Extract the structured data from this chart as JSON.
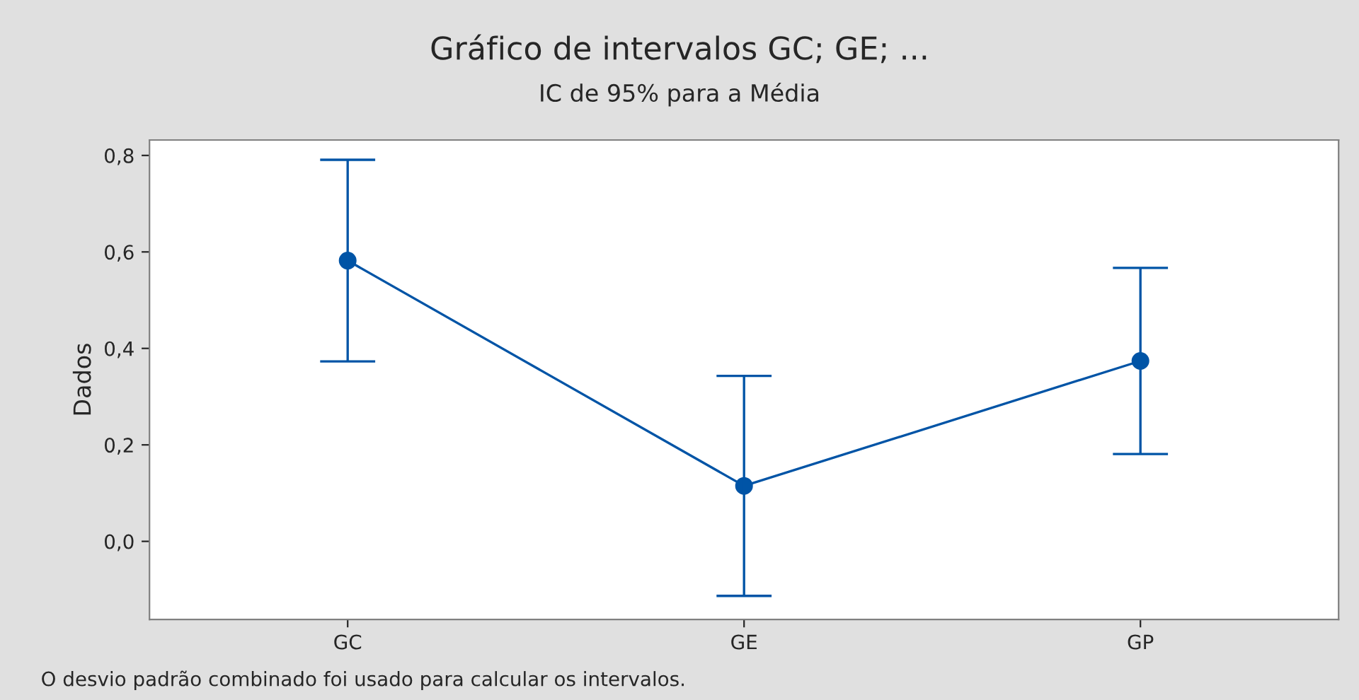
{
  "chart_data": {
    "type": "line",
    "title": "Gráfico de intervalos GC; GE; ...",
    "subtitle": "IC de 95% para a Média",
    "ylabel": "Dados",
    "categories": [
      "GC",
      "GE",
      "GP"
    ],
    "series": [
      {
        "color": "#0054a6",
        "values": [
          0.582,
          0.115,
          0.374
        ],
        "errors": [
          0.209,
          0.228,
          0.193
        ]
      }
    ],
    "ylim": [
      -0.162,
      0.832
    ],
    "yticks": [
      {
        "value": 0,
        "label": "0,0"
      },
      {
        "value": 0.2,
        "label": "0,2"
      },
      {
        "value": 0.4,
        "label": "0,4"
      },
      {
        "value": 0.6,
        "label": "0,6"
      },
      {
        "value": 0.8,
        "label": "0,8"
      }
    ],
    "marker": "circle",
    "line_style": "solid",
    "grid": false,
    "legend": false,
    "annotations": [
      "O desvio padrão combinado foi usado para calcular os intervalos."
    ]
  }
}
